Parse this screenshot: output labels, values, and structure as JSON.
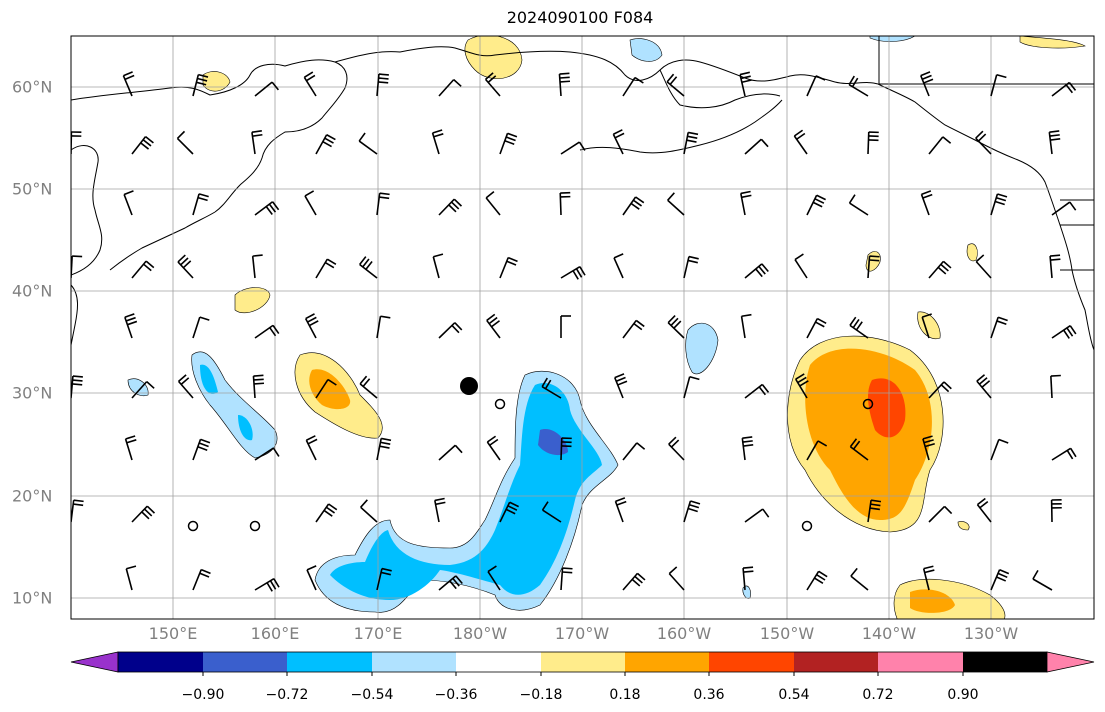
{
  "title": "2024090100 F084",
  "lon_labels": [
    "150°E",
    "160°E",
    "170°E",
    "180°W",
    "170°W",
    "160°W",
    "150°W",
    "140°W",
    "130°W"
  ],
  "lat_labels": [
    "60°N",
    "50°N",
    "40°N",
    "30°N",
    "20°N",
    "10°N"
  ],
  "colorbar": {
    "ticks": [
      "−0.90",
      "−0.72",
      "−0.54",
      "−0.36",
      "−0.18",
      "0.18",
      "0.36",
      "0.54",
      "0.72",
      "0.90"
    ],
    "colors": [
      "#9932CC",
      "#00008B",
      "#3A5FCD",
      "#00BFFF",
      "#B0E2FF",
      "#FFFFFF",
      "#FFEC8B",
      "#FFA500",
      "#FF4500",
      "#B22222",
      "#FF82AB"
    ]
  },
  "colors": {
    "land_outline": "#000000",
    "grid": "#a0a0a0",
    "barb": "#000000",
    "marker": "#000000"
  }
}
